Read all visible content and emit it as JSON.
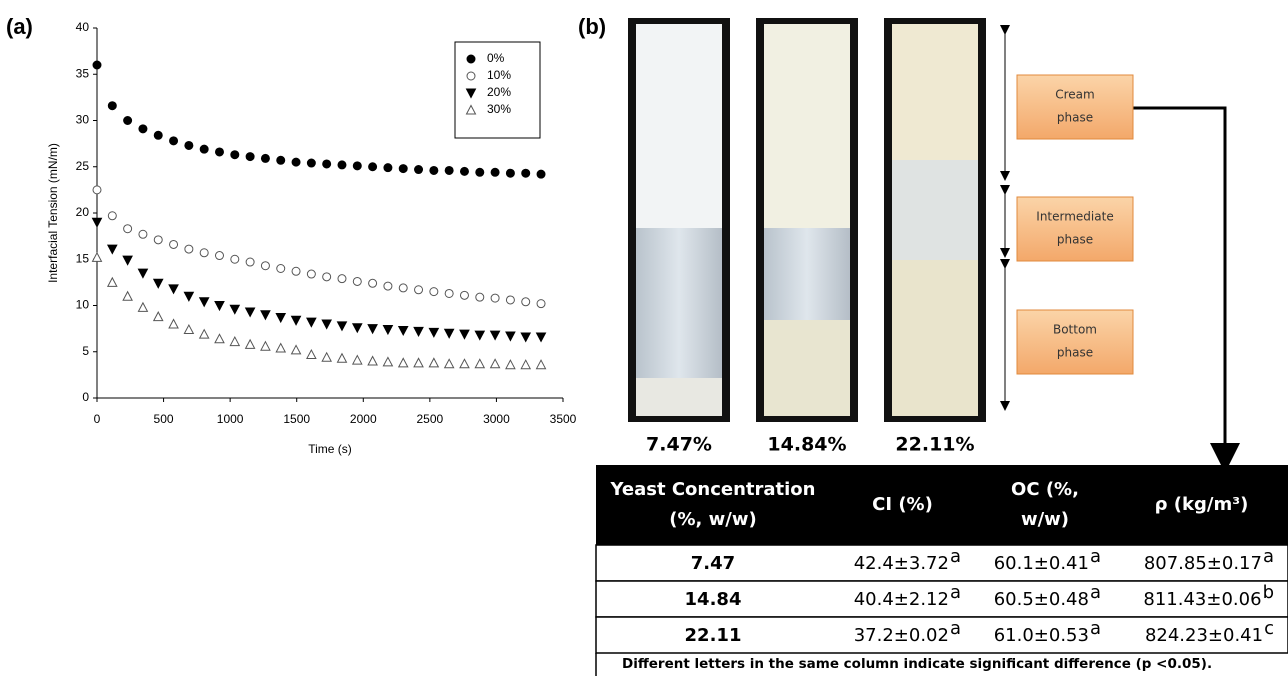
{
  "panel_labels": [
    "(a)",
    "(b)"
  ],
  "chart_data": {
    "type": "scatter",
    "xlabel": "Time (s)",
    "ylabel": "Interfacial Tension (mN/m)",
    "x": [
      0,
      115,
      230,
      345,
      460,
      575,
      690,
      805,
      920,
      1035,
      1150,
      1265,
      1380,
      1495,
      1610,
      1725,
      1840,
      1955,
      2070,
      2185,
      2300,
      2415,
      2530,
      2645,
      2760,
      2875,
      2990,
      3105,
      3220,
      3335
    ],
    "series": [
      {
        "name": "0%",
        "color": "#000000",
        "marker": "circle-filled",
        "values": [
          36,
          31.6,
          30.0,
          29.1,
          28.4,
          27.8,
          27.3,
          26.9,
          26.6,
          26.3,
          26.1,
          25.9,
          25.7,
          25.5,
          25.4,
          25.3,
          25.2,
          25.1,
          25.0,
          24.9,
          24.8,
          24.7,
          24.6,
          24.6,
          24.5,
          24.4,
          24.4,
          24.3,
          24.3,
          24.2
        ]
      },
      {
        "name": "10%",
        "color": "#555555",
        "marker": "circle-open",
        "values": [
          22.5,
          19.7,
          18.3,
          17.7,
          17.1,
          16.6,
          16.1,
          15.7,
          15.4,
          15.0,
          14.7,
          14.3,
          14.0,
          13.7,
          13.4,
          13.1,
          12.9,
          12.6,
          12.4,
          12.1,
          11.9,
          11.7,
          11.5,
          11.3,
          11.1,
          10.9,
          10.8,
          10.6,
          10.4,
          10.2
        ]
      },
      {
        "name": "20%",
        "color": "#000000",
        "marker": "triangle-down-filled",
        "values": [
          19,
          16.1,
          14.9,
          13.5,
          12.4,
          11.8,
          11.0,
          10.4,
          10.0,
          9.6,
          9.3,
          9.0,
          8.7,
          8.4,
          8.2,
          8.0,
          7.8,
          7.6,
          7.5,
          7.4,
          7.3,
          7.2,
          7.1,
          7.0,
          6.9,
          6.8,
          6.8,
          6.7,
          6.6,
          6.6
        ]
      },
      {
        "name": "30%",
        "color": "#555555",
        "marker": "triangle-up-open",
        "values": [
          15.2,
          12.5,
          11.0,
          9.8,
          8.8,
          8.0,
          7.4,
          6.9,
          6.4,
          6.1,
          5.8,
          5.6,
          5.4,
          5.2,
          4.7,
          4.4,
          4.3,
          4.1,
          4.0,
          3.9,
          3.8,
          3.8,
          3.8,
          3.7,
          3.7,
          3.7,
          3.7,
          3.6,
          3.6,
          3.6
        ]
      }
    ],
    "xlim": [
      0,
      3500
    ],
    "xticks": [
      0,
      500,
      1000,
      1500,
      2000,
      2500,
      3000,
      3500
    ],
    "ylim": [
      0,
      40
    ],
    "yticks": [
      0,
      5,
      10,
      15,
      20,
      25,
      30,
      35,
      40
    ],
    "grid": false,
    "legend": "upper right"
  },
  "photos": {
    "labels": [
      "7.47%",
      "14.84%",
      "22.11%"
    ],
    "phases": [
      [
        "Cream",
        "phase"
      ],
      [
        "Intermediate",
        "phase"
      ],
      [
        "Bottom",
        "phase"
      ]
    ]
  },
  "table": {
    "header": [
      [
        "Yeast Concentration",
        "(%, w/w)"
      ],
      [
        "CI (%)"
      ],
      [
        "OC (%,",
        "w/w)"
      ],
      [
        "ρ (kg/m³)"
      ]
    ],
    "rows": [
      [
        "7.47",
        {
          "text": "42.4±3.72",
          "sup": "a"
        },
        {
          "text": "60.1±0.41",
          "sup": "a"
        },
        {
          "text": "807.85±0.17",
          "sup": "a"
        }
      ],
      [
        "14.84",
        {
          "text": "40.4±2.12",
          "sup": "a"
        },
        {
          "text": "60.5±0.48",
          "sup": "a"
        },
        {
          "text": "811.43±0.06",
          "sup": "b"
        }
      ],
      [
        "22.11",
        {
          "text": "37.2±0.02",
          "sup": "a"
        },
        {
          "text": "61.0±0.53",
          "sup": "a"
        },
        {
          "text": "824.23±0.41",
          "sup": "c"
        }
      ]
    ],
    "footnote": "Different letters in the same column indicate significant difference (p <0.05)."
  }
}
